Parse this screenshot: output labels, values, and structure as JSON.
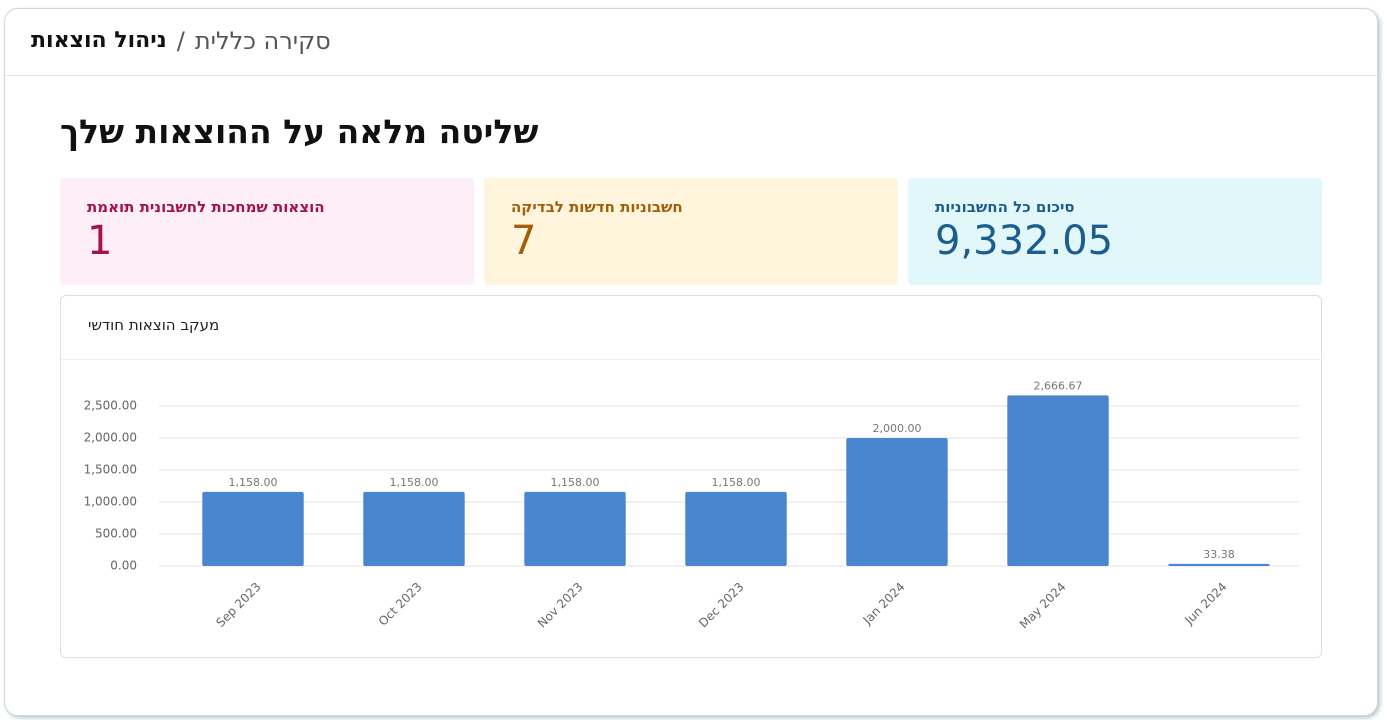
{
  "breadcrumb": {
    "parent": "סקירה כללית",
    "separator": "/",
    "current": "ניהול הוצאות"
  },
  "headline": "שליטה מלאה על ההוצאות שלך",
  "cards": [
    {
      "label": "סיכום כל החשבוניות",
      "value": "9,332.05"
    },
    {
      "label": "חשבוניות חדשות לבדיקה",
      "value": "7"
    },
    {
      "label": "הוצאות שמחכות לחשבונית תואמת",
      "value": "1"
    }
  ],
  "chart_data": {
    "type": "bar",
    "title": "מעקב הוצאות חודשי",
    "categories": [
      "Sep 2023",
      "Oct 2023",
      "Nov 2023",
      "Dec 2023",
      "Jan 2024",
      "May 2024",
      "Jun 2024"
    ],
    "values": [
      1158,
      1158,
      1158,
      1158,
      2000,
      2666.67,
      33.38
    ],
    "value_labels": [
      "1,158.00",
      "1,158.00",
      "1,158.00",
      "1,158.00",
      "2,000.00",
      "2,666.67",
      "33.38"
    ],
    "color": "#4a86cf",
    "ylim": [
      0,
      3000
    ],
    "yticks": [
      {
        "value": 0,
        "label": "0.00"
      },
      {
        "value": 500,
        "label": "500.00"
      },
      {
        "value": 1000,
        "label": "1,000.00"
      },
      {
        "value": 1500,
        "label": "1,500.00"
      },
      {
        "value": 2000,
        "label": "2,000.00"
      },
      {
        "value": 2500,
        "label": "2,500.00"
      }
    ],
    "grid": true
  }
}
